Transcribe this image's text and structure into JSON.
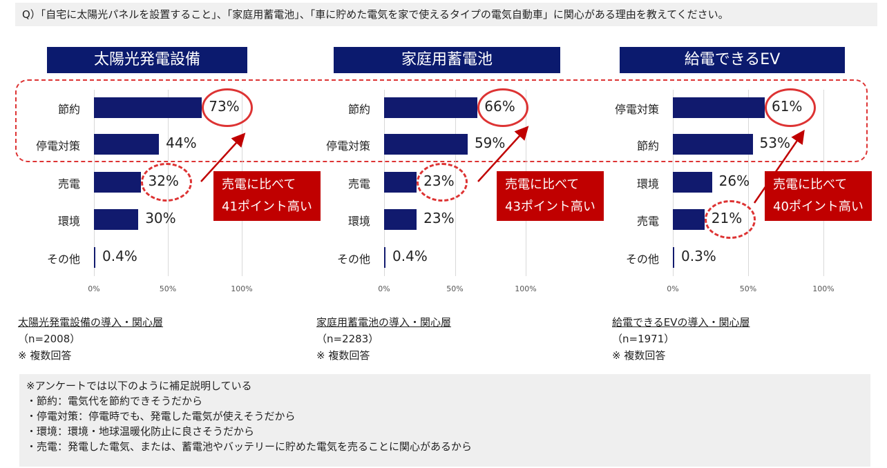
{
  "question": "Q）「自宅に太陽光パネルを設置すること」、「家庭用蓄電池」、「車に貯めた電気を家で使えるタイプの電気自動車」に関心がある理由を教えてください。",
  "colors": {
    "bar": "#111a6e",
    "title_bg": "#0b1a6e",
    "accent": "#c00000",
    "circle": "#dd3333"
  },
  "chart_data": [
    {
      "type": "bar",
      "orientation": "horizontal",
      "title": "太陽光発電設備",
      "categories": [
        "節約",
        "停電対策",
        "売電",
        "環境",
        "その他"
      ],
      "values": [
        73,
        44,
        32,
        30,
        0.4
      ],
      "value_labels": [
        "73%",
        "44%",
        "32%",
        "30%",
        "0.4%"
      ],
      "xlim": [
        0,
        100
      ],
      "xticks": [
        "0%",
        "50%",
        "100%"
      ],
      "callout": [
        "売電に比べて",
        "41ポイント高い"
      ],
      "note_layer": "太陽光発電設備の導入・関心層",
      "note_n": "（n=2008）",
      "note_multi": "※ 複数回答"
    },
    {
      "type": "bar",
      "orientation": "horizontal",
      "title": "家庭用蓄電池",
      "categories": [
        "節約",
        "停電対策",
        "売電",
        "環境",
        "その他"
      ],
      "values": [
        66,
        59,
        23,
        23,
        0.4
      ],
      "value_labels": [
        "66%",
        "59%",
        "23%",
        "23%",
        "0.4%"
      ],
      "xlim": [
        0,
        100
      ],
      "xticks": [
        "0%",
        "50%",
        "100%"
      ],
      "callout": [
        "売電に比べて",
        "43ポイント高い"
      ],
      "note_layer": "家庭用蓄電池の導入・関心層",
      "note_n": "（n=2283）",
      "note_multi": "※ 複数回答"
    },
    {
      "type": "bar",
      "orientation": "horizontal",
      "title": "給電できるEV",
      "categories": [
        "停電対策",
        "節約",
        "環境",
        "売電",
        "その他"
      ],
      "values": [
        61,
        53,
        26,
        21,
        0.3
      ],
      "value_labels": [
        "61%",
        "53%",
        "26%",
        "21%",
        "0.3%"
      ],
      "xlim": [
        0,
        100
      ],
      "xticks": [
        "0%",
        "50%",
        "100%"
      ],
      "callout": [
        "売電に比べて",
        "40ポイント高い"
      ],
      "note_layer": "給電できるEVの導入・関心層",
      "note_n": "（n=1971）",
      "note_multi": "※ 複数回答"
    }
  ],
  "footnote": [
    "※アンケートでは以下のように補足説明している",
    "・節約：電気代を節約できそうだから",
    "・停電対策：停電時でも、発電した電気が使えそうだから",
    "・環境：環境・地球温暖化防止に良さそうだから",
    "・売電：発電した電気、または、蓄電池やバッテリーに貯めた電気を売ることに関心があるから"
  ]
}
